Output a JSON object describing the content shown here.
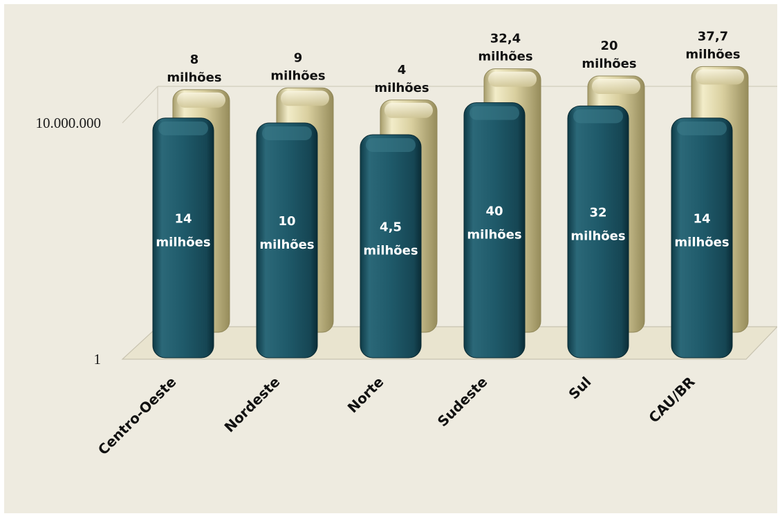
{
  "chart_data": {
    "type": "bar",
    "categories": [
      "Centro-Oeste",
      "Nordeste",
      "Norte",
      "Sudeste",
      "Sul",
      "CAU/BR"
    ],
    "series": [
      {
        "values": [
          14000000,
          10000000,
          4500000,
          40000000,
          32000000,
          14000000
        ],
        "labels": [
          [
            "14",
            "milhões"
          ],
          [
            "10",
            "milhões"
          ],
          [
            "4,5",
            "milhões"
          ],
          [
            "40",
            "milhões"
          ],
          [
            "32",
            "milhões"
          ],
          [
            "14",
            "milhões"
          ]
        ]
      },
      {
        "values": [
          8000000,
          9000000,
          4000000,
          32400000,
          20000000,
          37700000
        ],
        "labels": [
          [
            "8",
            "milhões"
          ],
          [
            "9",
            "milhões"
          ],
          [
            "4",
            "milhões"
          ],
          [
            "32,4",
            "milhões"
          ],
          [
            "20",
            "milhões"
          ],
          [
            "37,7",
            "milhões"
          ]
        ]
      }
    ],
    "yticks": [
      "1",
      "10.000.000"
    ],
    "yscale": "log",
    "title": "",
    "xlabel": "",
    "ylabel": "",
    "colors": {
      "front": "#1e5566",
      "back": "#d6cc9c",
      "background": "#eeebe0",
      "floor": "#e9e4cf"
    }
  }
}
